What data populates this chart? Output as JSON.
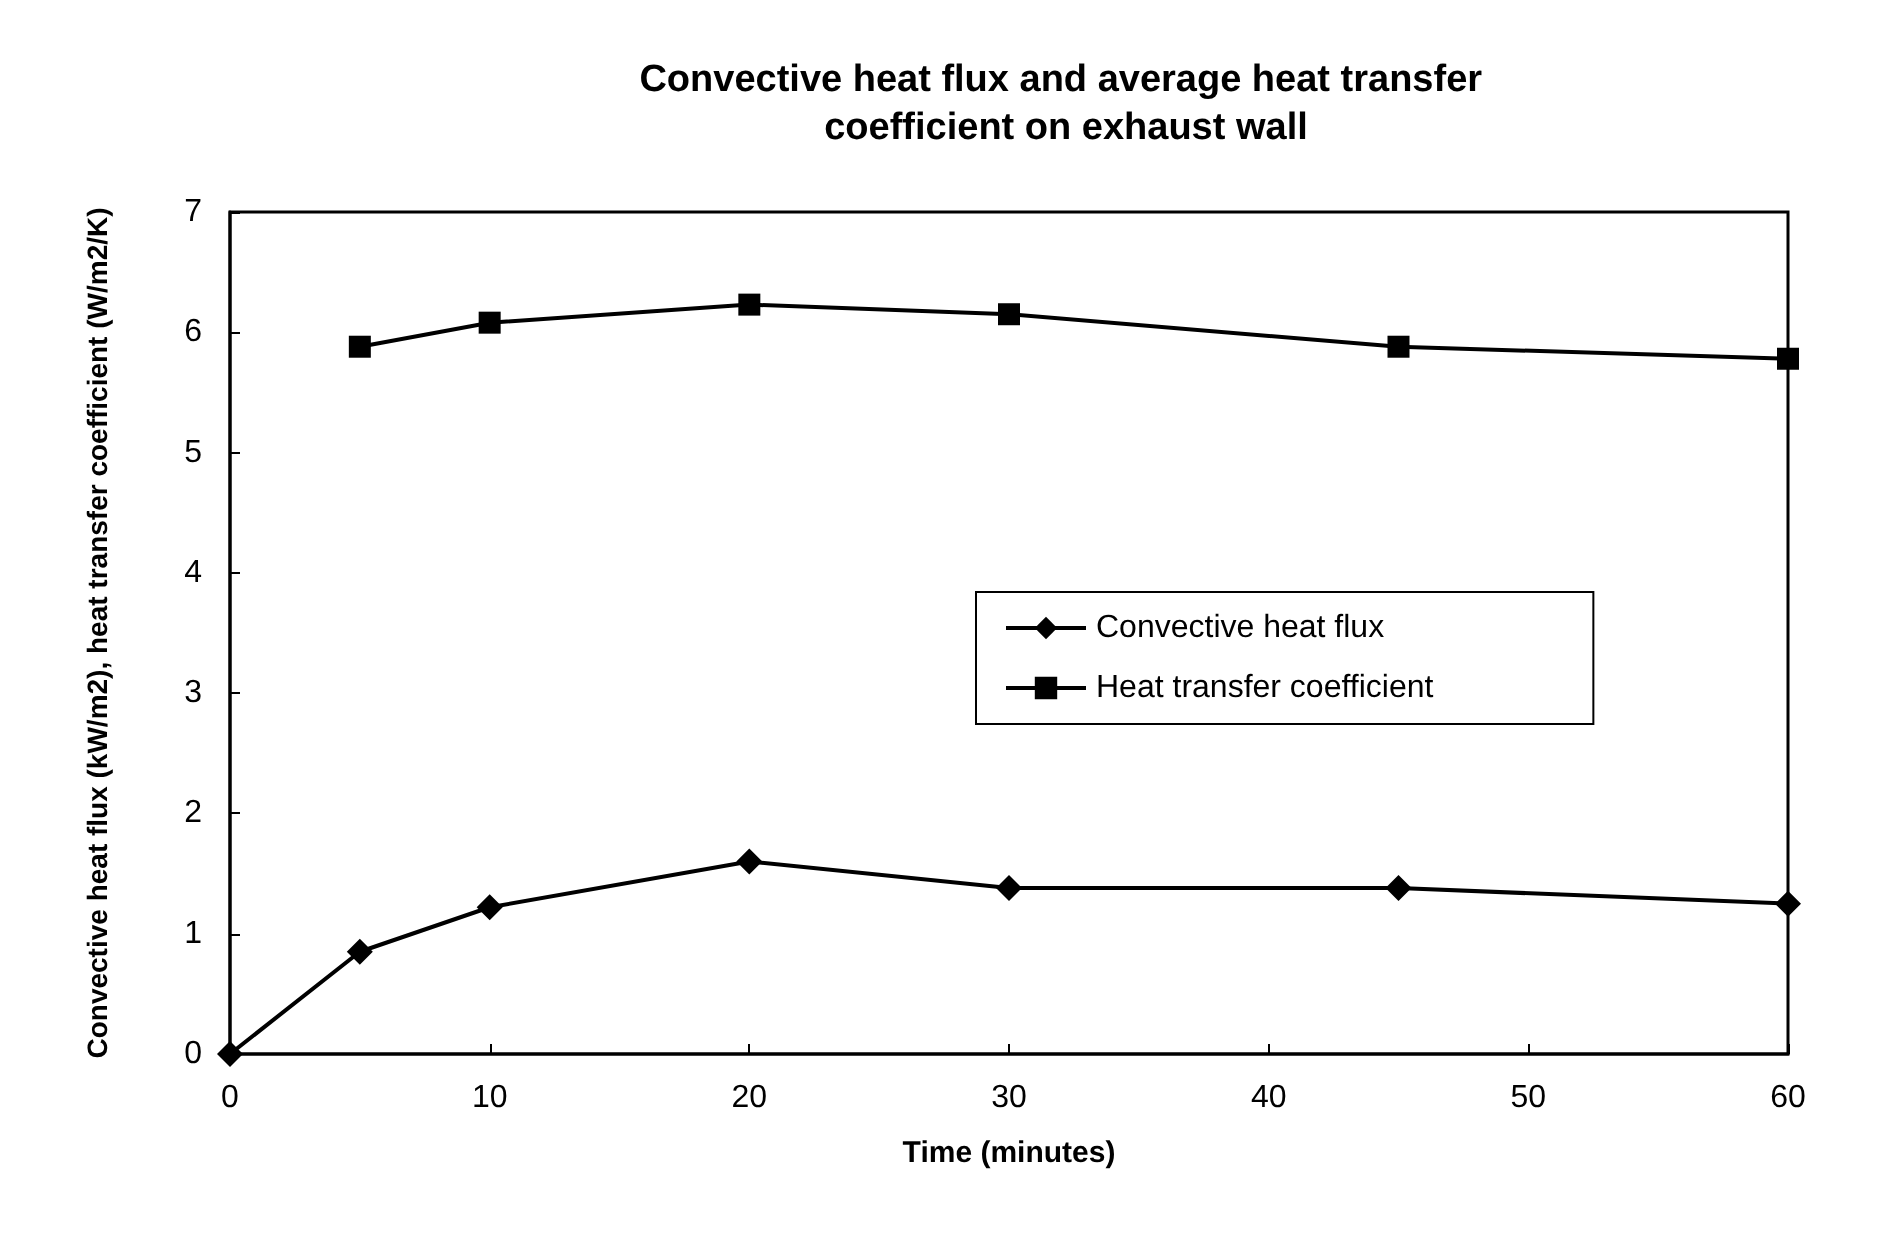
{
  "chart_data": {
    "type": "line",
    "title": "Convective heat flux and average heat transfer coefficient on exhaust wall",
    "xlabel": "Time (minutes)",
    "ylabel": "Convective heat flux (kW/m2), heat transfer coefficient (W/m2/K)",
    "series": [
      {
        "name": "Convective heat flux",
        "color": "#000000",
        "marker": "diamond",
        "x": [
          0,
          5,
          10,
          20,
          30,
          45,
          60
        ],
        "values": [
          0,
          0.85,
          1.22,
          1.6,
          1.38,
          1.38,
          1.25
        ]
      },
      {
        "name": "Heat transfer coefficient",
        "color": "#000000",
        "marker": "square",
        "x": [
          5,
          10,
          20,
          30,
          45,
          60
        ],
        "values": [
          5.88,
          6.08,
          6.23,
          6.15,
          5.88,
          5.78
        ]
      }
    ],
    "xlim": [
      0,
      60
    ],
    "xticks": [
      0,
      10,
      20,
      30,
      40,
      50,
      60
    ],
    "ylim": [
      0,
      7
    ],
    "yticks": [
      0,
      1,
      2,
      3,
      4,
      5,
      6,
      7
    ],
    "grid": false,
    "legend": "right",
    "line_style": "solid"
  }
}
